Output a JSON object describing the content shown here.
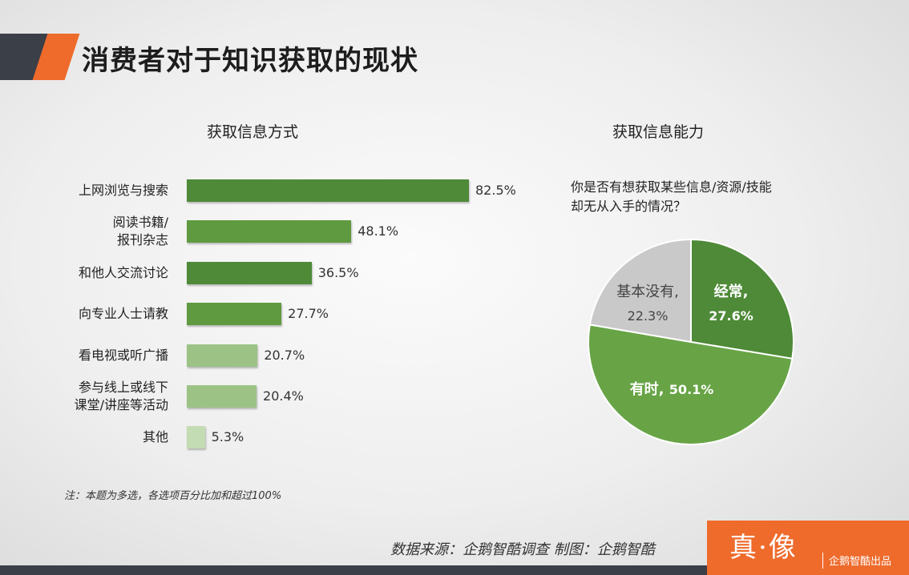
{
  "header": {
    "title": "消费者对于知识获取的现状"
  },
  "chart_data": [
    {
      "type": "bar",
      "orientation": "horizontal",
      "title": "获取信息方式",
      "categories": [
        "上网浏览与搜索",
        "阅读书籍/\n报刊杂志",
        "和他人交流讨论",
        "向专业人士请教",
        "看电视或听广播",
        "参与线上或线下\n课堂/讲座等活动",
        "其他"
      ],
      "values": [
        82.5,
        48.1,
        36.5,
        27.7,
        20.7,
        20.4,
        5.3
      ],
      "value_labels": [
        "82.5%",
        "48.1%",
        "36.5%",
        "27.7%",
        "20.7%",
        "20.4%",
        "5.3%"
      ],
      "colors": [
        "#4e8a37",
        "#5f9a40",
        "#4e8a37",
        "#5f9a40",
        "#9cc385",
        "#9cc385",
        "#c3dcb3"
      ],
      "unit": "%"
    },
    {
      "type": "pie",
      "title": "获取信息能力",
      "question": [
        "你是否有想获取某些信息/资源/技能",
        "却无从入手的情况？"
      ],
      "slices": [
        {
          "label": "经常,",
          "value": 27.6,
          "value_label": "27.6%",
          "color": "#4e8a37",
          "text_color": "#ffffff"
        },
        {
          "label": "有时,",
          "value": 50.1,
          "value_label": "50.1%",
          "color": "#68a446",
          "text_color": "#ffffff"
        },
        {
          "label": "基本没有,",
          "value": 22.3,
          "value_label": "22.3%",
          "color": "#c9c9c9",
          "text_color": "#444444"
        }
      ]
    }
  ],
  "footer": {
    "note": "注：本题为多选，各选项百分比加和超过100%",
    "source": "数据来源：企鹅智酷调查   制图：企鹅智酷",
    "brand_logo": "真·像",
    "brand_text": "企鹅智酷出品"
  }
}
